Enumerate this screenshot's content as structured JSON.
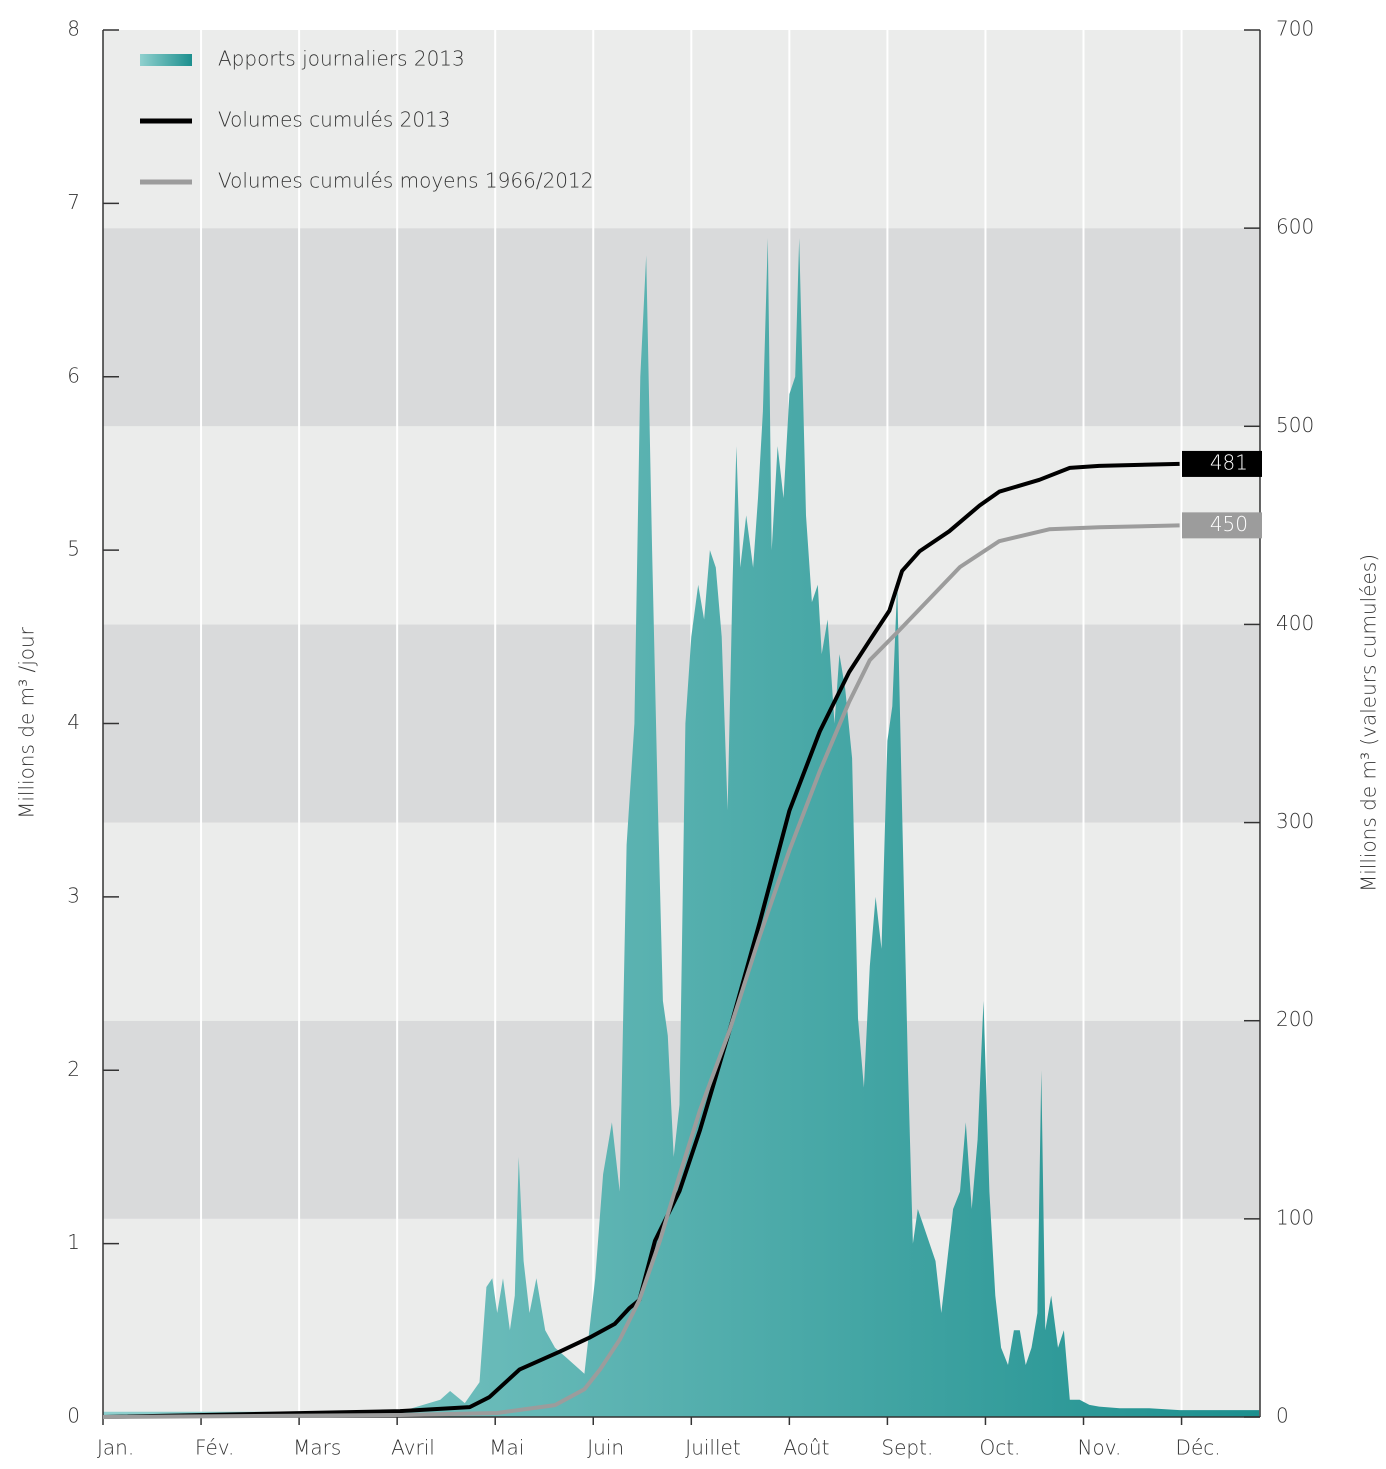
{
  "chart_data": {
    "type": "area_line",
    "categories": [
      "Jan.",
      "Fév.",
      "Mars",
      "Avril",
      "Mai",
      "Juin",
      "Juillet",
      "Août",
      "Sept.",
      "Oct.",
      "Nov.",
      "Déc."
    ],
    "xlim": [
      0,
      11.8
    ],
    "ylabel": "Millions de m³ /jour",
    "y2label": "Millions de m³ (valeurs cumulées)",
    "ylim": [
      0,
      8
    ],
    "yticks": [
      0,
      1,
      2,
      3,
      4,
      5,
      6,
      7,
      8
    ],
    "y2lim": [
      0,
      700
    ],
    "y2ticks": [
      0,
      100,
      200,
      300,
      400,
      500,
      600,
      700
    ],
    "band_colors": [
      "#ebeceb",
      "#d9dadb"
    ],
    "grid": true,
    "legend": "top-left",
    "series": [
      {
        "name": "Apports journaliers 2013",
        "kind": "area",
        "color": "#2a9a98",
        "gradient": [
          "#8fd0ce",
          "#1c8f8e"
        ],
        "x": [
          0,
          3.03,
          3.44,
          3.54,
          3.69,
          3.84,
          3.91,
          3.97,
          4.02,
          4.08,
          4.15,
          4.2,
          4.24,
          4.29,
          4.35,
          4.42,
          4.51,
          4.61,
          4.71,
          4.81,
          4.91,
          5.02,
          5.1,
          5.19,
          5.27,
          5.34,
          5.42,
          5.48,
          5.54,
          5.6,
          5.66,
          5.71,
          5.76,
          5.82,
          5.88,
          5.94,
          6.0,
          6.07,
          6.13,
          6.19,
          6.25,
          6.31,
          6.37,
          6.42,
          6.46,
          6.5,
          6.56,
          6.63,
          6.68,
          6.73,
          6.78,
          6.82,
          6.88,
          6.94,
          7.0,
          7.06,
          7.1,
          7.17,
          7.23,
          7.29,
          7.33,
          7.39,
          7.46,
          7.51,
          7.57,
          7.64,
          7.7,
          7.76,
          7.82,
          7.88,
          7.94,
          8.0,
          8.05,
          8.1,
          8.15,
          8.21,
          8.26,
          8.31,
          8.37,
          8.43,
          8.49,
          8.55,
          8.61,
          8.67,
          8.74,
          8.8,
          8.86,
          8.92,
          8.98,
          9.04,
          9.1,
          9.16,
          9.23,
          9.29,
          9.35,
          9.41,
          9.47,
          9.53,
          9.57,
          9.61,
          9.67,
          9.74,
          9.8,
          9.86,
          9.96,
          10.06,
          10.16,
          10.37,
          10.67,
          10.98,
          11.39,
          11.79
        ],
        "values": [
          0.03,
          0.03,
          0.1,
          0.15,
          0.08,
          0.2,
          0.75,
          0.8,
          0.6,
          0.8,
          0.5,
          0.7,
          1.5,
          0.9,
          0.6,
          0.8,
          0.5,
          0.4,
          0.35,
          0.3,
          0.25,
          0.8,
          1.4,
          1.7,
          1.3,
          3.3,
          4.0,
          6.0,
          6.7,
          5.0,
          3.5,
          2.4,
          2.2,
          1.5,
          1.8,
          4.0,
          4.5,
          4.8,
          4.6,
          5.0,
          4.9,
          4.5,
          3.5,
          4.8,
          5.6,
          4.9,
          5.2,
          4.9,
          5.3,
          5.8,
          6.8,
          5.0,
          5.6,
          5.3,
          5.9,
          6.0,
          6.8,
          5.2,
          4.7,
          4.8,
          4.4,
          4.6,
          4.0,
          4.4,
          4.2,
          3.8,
          2.3,
          1.9,
          2.6,
          3.0,
          2.7,
          3.9,
          4.1,
          4.8,
          3.5,
          2.0,
          1.0,
          1.2,
          1.1,
          1.0,
          0.9,
          0.6,
          0.9,
          1.2,
          1.3,
          1.7,
          1.2,
          1.6,
          2.4,
          1.3,
          0.7,
          0.4,
          0.3,
          0.5,
          0.5,
          0.3,
          0.4,
          0.6,
          2.0,
          0.5,
          0.7,
          0.4,
          0.5,
          0.1,
          0.1,
          0.07,
          0.06,
          0.05,
          0.05,
          0.04,
          0.04,
          0.04
        ]
      },
      {
        "name": "Volumes cumulés 2013",
        "kind": "line",
        "axis": "y2",
        "color": "#000000",
        "x": [
          0,
          3.03,
          3.74,
          3.94,
          4.25,
          4.66,
          4.96,
          5.22,
          5.37,
          5.47,
          5.63,
          5.88,
          6.09,
          6.39,
          6.7,
          7.0,
          7.31,
          7.61,
          7.82,
          8.02,
          8.15,
          8.33,
          8.63,
          8.94,
          9.14,
          9.55,
          9.86,
          10.16,
          10.98
        ],
        "values": [
          0,
          3,
          5,
          10,
          24,
          33,
          40,
          47,
          55,
          59,
          89,
          114,
          145,
          195,
          250,
          306,
          346,
          376,
          392,
          407,
          427,
          437,
          447,
          460,
          467,
          473,
          479,
          480,
          481
        ]
      },
      {
        "name": "Volumes cumulés moyens 1966/2012",
        "kind": "line",
        "axis": "y2",
        "color": "#9c9c9c",
        "x": [
          0,
          3.03,
          4.02,
          4.61,
          4.91,
          5.07,
          5.27,
          5.47,
          5.68,
          5.88,
          6.09,
          6.39,
          6.7,
          7.0,
          7.31,
          7.61,
          7.82,
          8.12,
          8.74,
          9.14,
          9.65,
          10.16,
          10.98
        ],
        "values": [
          0,
          1,
          2,
          6,
          14,
          24,
          39,
          59,
          89,
          122,
          155,
          195,
          243,
          286,
          326,
          361,
          382,
          397,
          429,
          442,
          448,
          449,
          450
        ]
      }
    ]
  }
}
